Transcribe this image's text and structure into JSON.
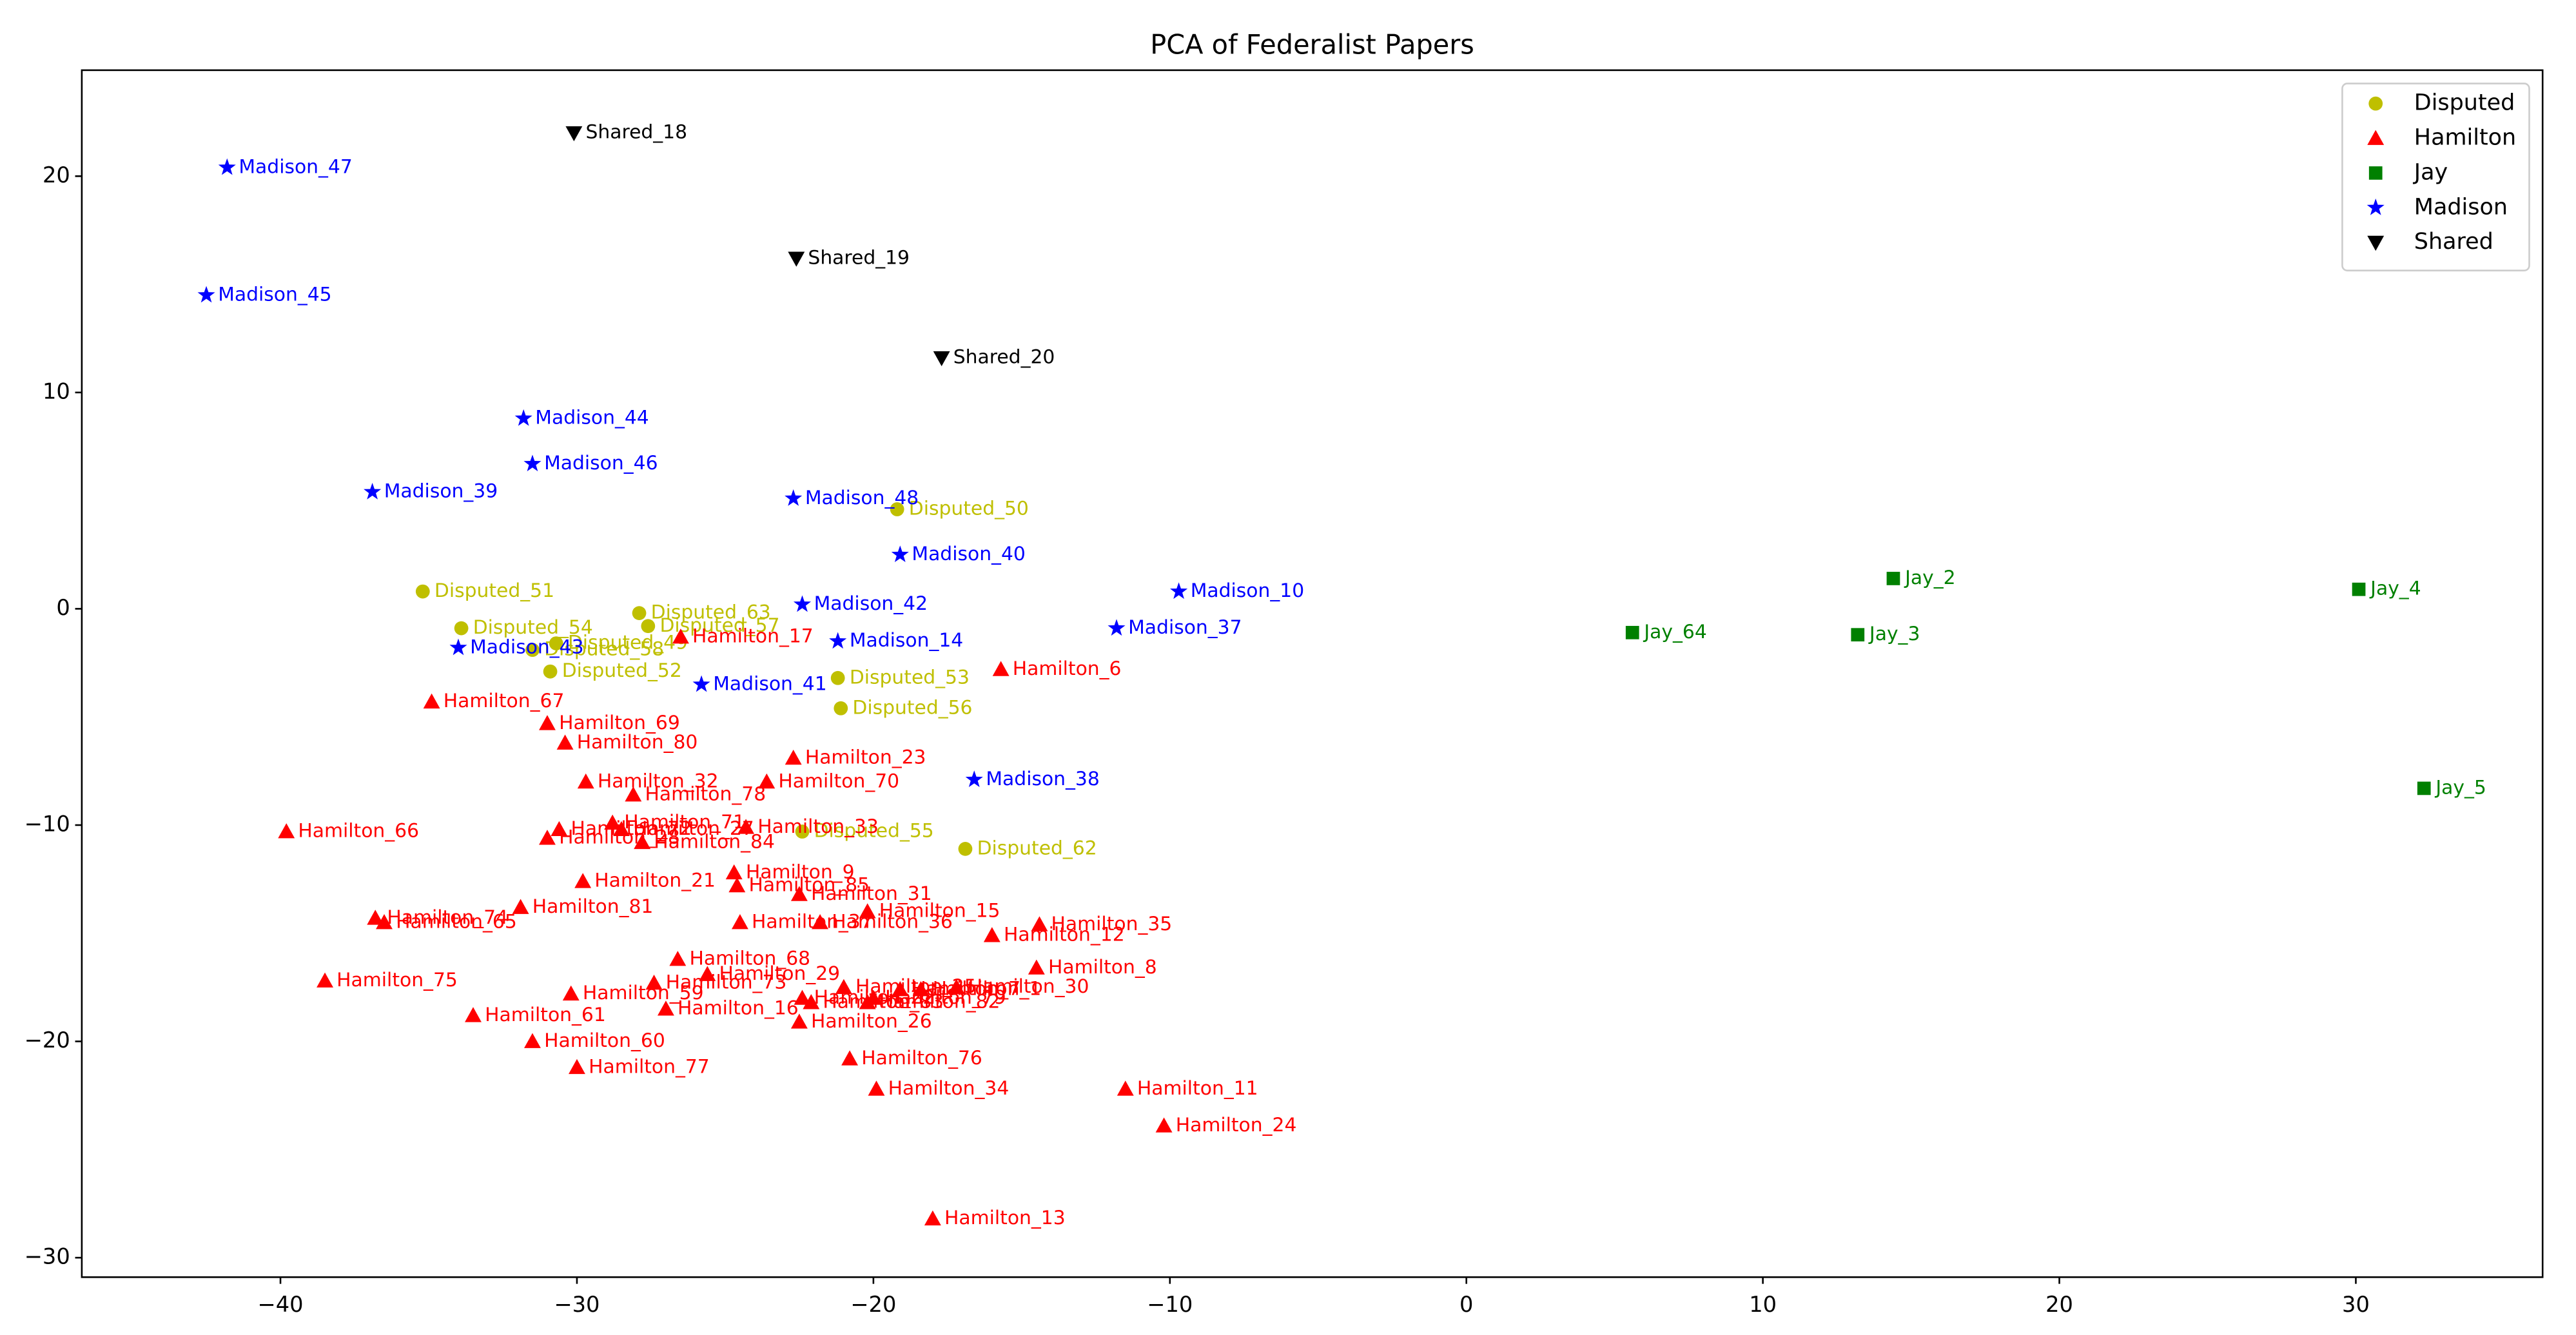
{
  "chart_data": {
    "type": "scatter",
    "title": "PCA of Federalist Papers",
    "xlim": [
      -46.7,
      36.3
    ],
    "ylim": [
      -30.9,
      24.9
    ],
    "xticks": [
      {
        "value": -40,
        "label": "−40"
      },
      {
        "value": -30,
        "label": "−30"
      },
      {
        "value": -20,
        "label": "−20"
      },
      {
        "value": -10,
        "label": "−10"
      },
      0,
      10,
      20,
      30
    ],
    "yticks": [
      {
        "value": -30,
        "label": "−30"
      },
      {
        "value": -20,
        "label": "−20"
      },
      {
        "value": -10,
        "label": "−10"
      },
      0,
      10,
      20
    ],
    "legend_position": "upper right",
    "series": [
      {
        "name": "Disputed",
        "color": "#bfbf00",
        "marker": "circle",
        "labels": [
          "Disputed_50",
          "Disputed_51",
          "Disputed_63",
          "Disputed_57",
          "Disputed_54",
          "Disputed_49",
          "Disputed_58",
          "Disputed_52",
          "Disputed_53",
          "Disputed_56",
          "Disputed_55",
          "Disputed_62"
        ],
        "x": [
          -19.2,
          -35.2,
          -27.9,
          -27.6,
          -33.9,
          -30.7,
          -31.5,
          -30.9,
          -21.2,
          -21.1,
          -22.4,
          -16.9
        ],
        "values": [
          4.6,
          0.8,
          -0.2,
          -0.8,
          -0.9,
          -1.6,
          -1.9,
          -2.9,
          -3.2,
          -4.6,
          -10.3,
          -11.1
        ]
      },
      {
        "name": "Hamilton",
        "color": "#ff0000",
        "marker": "triangle-up",
        "labels": [
          "Hamilton_17",
          "Hamilton_6",
          "Hamilton_67",
          "Hamilton_69",
          "Hamilton_80",
          "Hamilton_23",
          "Hamilton_32",
          "Hamilton_70",
          "Hamilton_78",
          "Hamilton_66",
          "Hamilton_71",
          "Hamilton_33",
          "Hamilton_84",
          "Hamilton_72",
          "Hamilton_28",
          "Hamilton_27",
          "Hamilton_21",
          "Hamilton_9",
          "Hamilton_85",
          "Hamilton_31",
          "Hamilton_15",
          "Hamilton_81",
          "Hamilton_74",
          "Hamilton_65",
          "Hamilton_36",
          "Hamilton_37",
          "Hamilton_12",
          "Hamilton_35",
          "Hamilton_68",
          "Hamilton_8",
          "Hamilton_29",
          "Hamilton_75",
          "Hamilton_73",
          "Hamilton_59",
          "Hamilton_30",
          "Hamilton_25",
          "Hamilton_79",
          "Hamilton_22",
          "Hamilton_83",
          "Hamilton_82",
          "Hamilton_7",
          "Hamilton_1",
          "Hamilton_16",
          "Hamilton_61",
          "Hamilton_26",
          "Hamilton_60",
          "Hamilton_76",
          "Hamilton_77",
          "Hamilton_34",
          "Hamilton_11",
          "Hamilton_24",
          "Hamilton_13"
        ],
        "x": [
          -26.5,
          -15.7,
          -34.9,
          -31.0,
          -30.4,
          -22.7,
          -29.7,
          -23.6,
          -28.1,
          -39.8,
          -28.8,
          -24.3,
          -27.8,
          -30.6,
          -31.0,
          -28.5,
          -29.8,
          -24.7,
          -24.6,
          -22.5,
          -20.2,
          -31.9,
          -36.8,
          -36.5,
          -21.8,
          -24.5,
          -16.0,
          -14.4,
          -26.6,
          -14.5,
          -25.6,
          -38.5,
          -27.4,
          -30.2,
          -17.2,
          -21.0,
          -20.0,
          -22.4,
          -22.1,
          -20.2,
          -19.1,
          -18.4,
          -27.0,
          -33.5,
          -22.5,
          -31.5,
          -20.8,
          -30.0,
          -19.9,
          -11.5,
          -10.2,
          -18.0
        ],
        "values": [
          -1.3,
          -2.8,
          -4.3,
          -5.3,
          -6.2,
          -6.9,
          -8.0,
          -8.0,
          -8.6,
          -10.3,
          -9.9,
          -10.1,
          -10.8,
          -10.2,
          -10.6,
          -10.2,
          -12.6,
          -12.2,
          -12.8,
          -13.2,
          -14.0,
          -13.8,
          -14.3,
          -14.5,
          -14.5,
          -14.5,
          -15.1,
          -14.6,
          -16.2,
          -16.6,
          -16.9,
          -17.2,
          -17.3,
          -17.8,
          -17.5,
          -17.5,
          -18.0,
          -18.0,
          -18.2,
          -18.2,
          -17.6,
          -17.6,
          -18.5,
          -18.8,
          -19.1,
          -20.0,
          -20.8,
          -21.2,
          -22.2,
          -22.2,
          -23.9,
          -28.2
        ]
      },
      {
        "name": "Jay",
        "color": "#008000",
        "marker": "square",
        "labels": [
          "Jay_2",
          "Jay_4",
          "Jay_64",
          "Jay_3",
          "Jay_5"
        ],
        "x": [
          14.4,
          30.1,
          5.6,
          13.2,
          32.3
        ],
        "values": [
          1.4,
          0.9,
          -1.1,
          -1.2,
          -8.3
        ]
      },
      {
        "name": "Madison",
        "color": "#0000ff",
        "marker": "star",
        "labels": [
          "Madison_47",
          "Madison_45",
          "Madison_44",
          "Madison_46",
          "Madison_39",
          "Madison_48",
          "Madison_40",
          "Madison_10",
          "Madison_42",
          "Madison_37",
          "Madison_14",
          "Madison_43",
          "Madison_41",
          "Madison_38"
        ],
        "x": [
          -41.8,
          -42.5,
          -31.8,
          -31.5,
          -36.9,
          -22.7,
          -19.1,
          -9.7,
          -22.4,
          -11.8,
          -21.2,
          -34.0,
          -25.8,
          -16.6
        ],
        "values": [
          20.4,
          14.5,
          8.8,
          6.7,
          5.4,
          5.1,
          2.5,
          0.8,
          0.2,
          -0.9,
          -1.5,
          -1.8,
          -3.5,
          -7.9
        ]
      },
      {
        "name": "Shared",
        "color": "#000000",
        "marker": "triangle-down",
        "labels": [
          "Shared_18",
          "Shared_19",
          "Shared_20"
        ],
        "x": [
          -30.1,
          -22.6,
          -17.7
        ],
        "values": [
          22.0,
          16.2,
          11.6
        ]
      }
    ]
  }
}
